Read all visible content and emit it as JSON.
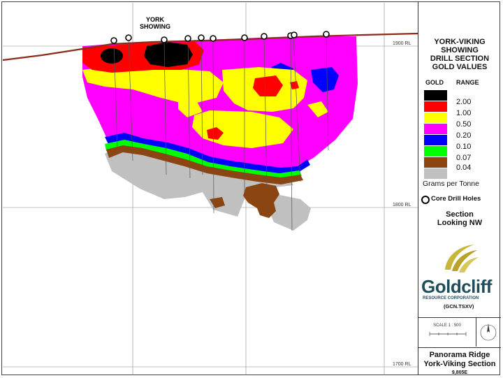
{
  "section": {
    "showing_label": [
      "YORK",
      "SHOWING"
    ],
    "rl_labels": [
      "1900 RL",
      "1800 RL",
      "1700 RL"
    ]
  },
  "legend": {
    "title_lines": [
      "YORK-VIKING",
      "SHOWING",
      "DRILL SECTION",
      "GOLD VALUES"
    ],
    "col_gold": "GOLD",
    "col_range": "RANGE",
    "entries": [
      {
        "color": "#000000",
        "value": ""
      },
      {
        "color": "#ff0000",
        "value": "2.00"
      },
      {
        "color": "#ffff00",
        "value": "1.00"
      },
      {
        "color": "#ff00ff",
        "value": "0.50"
      },
      {
        "color": "#0000ff",
        "value": "0.20"
      },
      {
        "color": "#00ff00",
        "value": "0.10"
      },
      {
        "color": "#8b4513",
        "value": "0.07"
      },
      {
        "color": "#c0c0c0",
        "value": "0.04"
      }
    ],
    "units": "Grams per Tonne",
    "holes_label": "Core Drill Holes",
    "view_lines": [
      "Section",
      "Looking NW"
    ]
  },
  "company": {
    "name": "Goldcliff",
    "subtitle": "RESOURCE CORPORATION",
    "ticker": "(GCN.TSXV)"
  },
  "scale": {
    "label": "SCALE 1 : 500"
  },
  "footer": {
    "line1": "Panorama Ridge",
    "line2": "York-Viking Section",
    "line3": "9,805E"
  }
}
